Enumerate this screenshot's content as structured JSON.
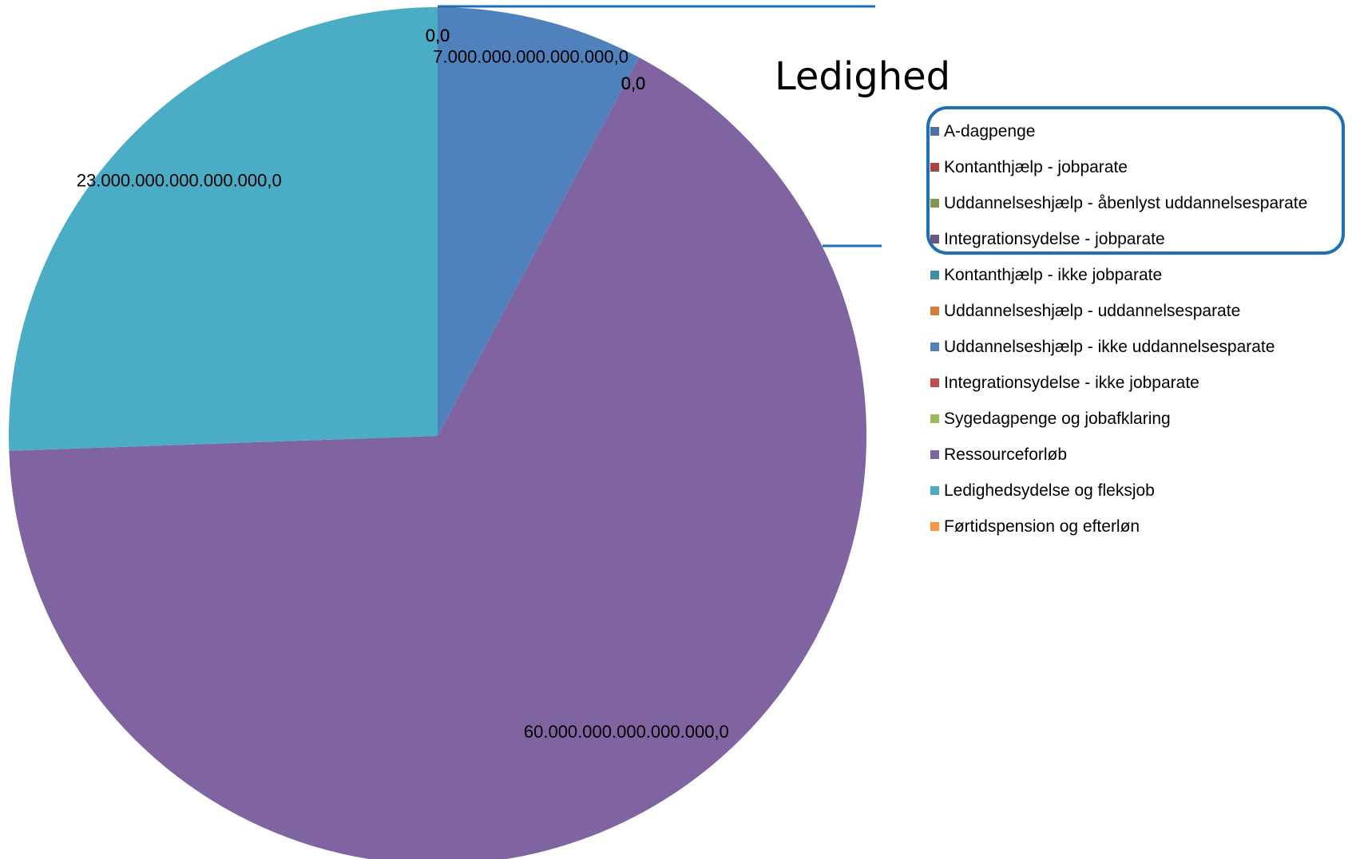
{
  "chart_data": {
    "type": "pie",
    "title": "Ledighed",
    "series": [
      {
        "name": "A-dagpenge",
        "value": 7000000000000000,
        "label": "7.000.000.000.000.000,0",
        "color": "#4f81bd"
      },
      {
        "name": "Kontanthjælp - jobparate",
        "value": 0,
        "label": "0,0",
        "color": "#c0504d"
      },
      {
        "name": "Uddannelseshjælp - åbenlyst uddannelsesparate",
        "value": 0,
        "label": "0,0",
        "color": "#9bbb59"
      },
      {
        "name": "Integrationsydelse - jobparate",
        "value": 0,
        "label": "0,0",
        "color": "#8064a2"
      },
      {
        "name": "Kontanthjælp - ikke jobparate",
        "value": 0,
        "label": "0,0",
        "color": "#4bacc6"
      },
      {
        "name": "Uddannelseshjælp - uddannelsesparate",
        "value": 0,
        "label": "0,0",
        "color": "#f79646"
      },
      {
        "name": "Uddannelseshjælp - ikke uddannelsesparate",
        "value": 0,
        "label": "0,0",
        "color": "#4f81bd"
      },
      {
        "name": "Integrationsydelse - ikke jobparate",
        "value": 0,
        "label": "0,0",
        "color": "#c0504d"
      },
      {
        "name": "Sygedagpenge og jobafklaring",
        "value": 0,
        "label": "0,0",
        "color": "#9bbb59"
      },
      {
        "name": "Ressourceforløb",
        "value": 60000000000000000,
        "label": "60.000.000.000.000.000,0",
        "color": "#8064a2"
      },
      {
        "name": "Ledighedsydelse og fleksjob",
        "value": 23000000000000000,
        "label": "23.000.000.000.000.000,0",
        "color": "#4bacc6"
      },
      {
        "name": "Førtidspension og efterløn",
        "value": 0,
        "label": "0,0",
        "color": "#f79646"
      }
    ],
    "legend_swatch_colors": [
      "#4f6fa3",
      "#a8413f",
      "#7e9a4a",
      "#6a5487",
      "#3f8ea6",
      "#d27d3b",
      "#4f81bd",
      "#c0504d",
      "#9bbb59",
      "#8064a2",
      "#4bacc6",
      "#f79646"
    ],
    "legend_position": "right",
    "highlighted_legend_entries": [
      "A-dagpenge",
      "Kontanthjælp - jobparate",
      "Uddannelseshjælp - åbenlyst uddannelsesparate",
      "Integrationsydelse - jobparate"
    ],
    "highlight_color": "#1f6fb7",
    "start_angle_deg": 0,
    "direction": "clockwise"
  }
}
